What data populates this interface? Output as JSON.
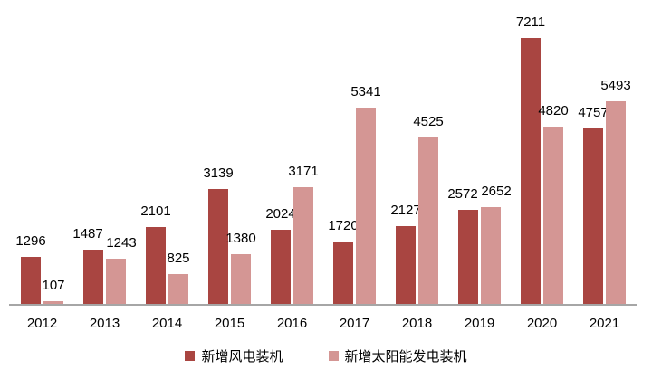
{
  "chart_data": {
    "type": "bar",
    "title": "",
    "xlabel": "",
    "ylabel": "",
    "categories": [
      "2012",
      "2013",
      "2014",
      "2015",
      "2016",
      "2017",
      "2018",
      "2019",
      "2020",
      "2021"
    ],
    "series": [
      {
        "name": "新增风电装机",
        "color": "#A94541",
        "values": [
          1296,
          1487,
          2101,
          3139,
          2024,
          1720,
          2127,
          2572,
          7211,
          4757
        ]
      },
      {
        "name": "新增太阳能发电装机",
        "color": "#D49694",
        "values": [
          107,
          1243,
          825,
          1380,
          3171,
          5341,
          4525,
          2652,
          4820,
          5493
        ]
      }
    ],
    "value_labels_shown": true,
    "ylim": [
      0,
      7600
    ],
    "grid": false,
    "y_axis_shown": false,
    "legend_position": "bottom",
    "axis_color": "#A6A6A6",
    "text_color": "#000000",
    "background": "#FFFFFF"
  }
}
